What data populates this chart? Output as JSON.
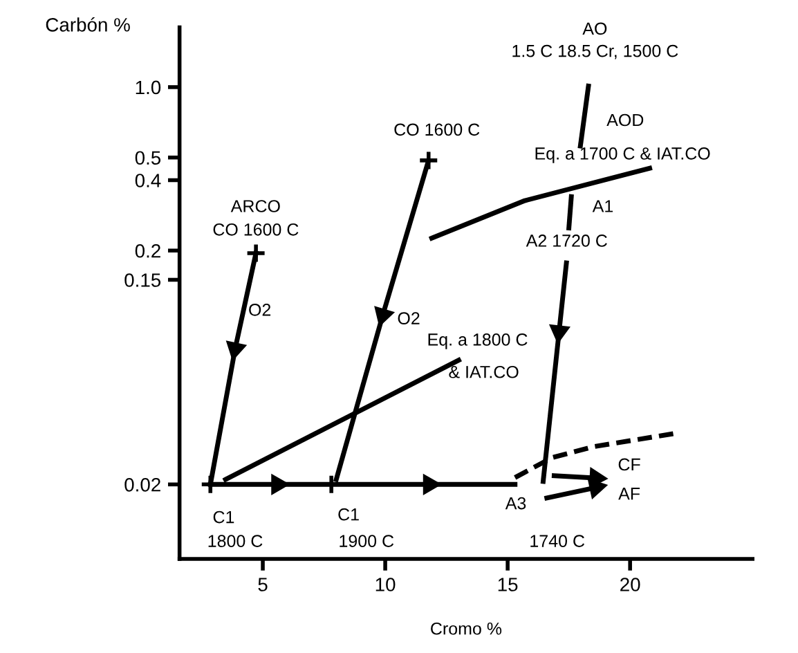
{
  "chart_data": {
    "type": "line",
    "xlabel": "Cromo %",
    "ylabel": "Carbón %",
    "log": "y",
    "grid": false,
    "xlim": [
      1.6,
      25
    ],
    "ylim": [
      0.0096,
      1.8
    ],
    "xticks": [
      5,
      10,
      15,
      20
    ],
    "yticks": [
      {
        "value": 1,
        "label": "1.0"
      },
      0.5,
      0.4,
      0.2,
      0.15,
      0.02
    ],
    "series": [
      {
        "color": "#000000",
        "marker": "triangle",
        "x": [
          4.72,
          3.87
        ],
        "values": [
          0.195,
          0.076
        ]
      },
      {
        "color": "#000000",
        "marker": "none",
        "x": [
          3.87,
          2.86
        ],
        "values": [
          0.076,
          0.02
        ]
      },
      {
        "color": "#000000",
        "marker": "triangle",
        "x": [
          11.77,
          9.9
        ],
        "values": [
          0.486,
          0.106
        ]
      },
      {
        "color": "#000000",
        "marker": "none",
        "x": [
          9.9,
          8.0
        ],
        "values": [
          0.106,
          0.021
        ]
      },
      {
        "color": "#000000",
        "marker": "none",
        "x": [
          3.48,
          13.0
        ],
        "values": [
          0.021,
          0.068
        ]
      },
      {
        "color": "#000000",
        "marker": "none",
        "x": [
          11.9,
          15.7,
          20.8
        ],
        "values": [
          0.226,
          0.327,
          0.45
        ]
      },
      {
        "color": "#000000",
        "marker": "none",
        "x": [
          18.3,
          17.97
        ],
        "values": [
          1.01,
          0.56
        ]
      },
      {
        "color": "#000000",
        "marker": "none",
        "x": [
          17.6,
          17.5
        ],
        "values": [
          0.34,
          0.25
        ]
      },
      {
        "color": "#000000",
        "marker": "triangle",
        "x": [
          17.4,
          17.1
        ],
        "values": [
          0.177,
          0.09
        ]
      },
      {
        "color": "#000000",
        "marker": "none",
        "x": [
          17.1,
          16.45
        ],
        "values": [
          0.09,
          0.0206
        ]
      },
      {
        "color": "#000000",
        "marker": "triangle",
        "x": [
          2.86,
          5.6
        ],
        "values": [
          0.02,
          0.02
        ]
      },
      {
        "color": "#000000",
        "marker": "triangle",
        "x": [
          5.6,
          11.8
        ],
        "values": [
          0.02,
          0.02
        ]
      },
      {
        "color": "#000000",
        "marker": "none",
        "x": [
          11.8,
          15.3
        ],
        "values": [
          0.02,
          0.02
        ]
      },
      {
        "color": "#000000",
        "marker": "none",
        "line_style": "dashed",
        "x": [
          15.3,
          16.8,
          18.5,
          21.8
        ],
        "values": [
          0.0214,
          0.026,
          0.029,
          0.033
        ]
      },
      {
        "color": "#000000",
        "marker": "triangle",
        "x": [
          16.9,
          18.6
        ],
        "values": [
          0.0218,
          0.0213
        ]
      },
      {
        "color": "#000000",
        "marker": "triangle",
        "x": [
          16.6,
          18.6
        ],
        "values": [
          0.0175,
          0.0194
        ]
      },
      {
        "type": "scatter",
        "color": "#000000",
        "marker": "cross",
        "x": [
          4.72,
          11.77,
          2.86,
          7.8
        ],
        "values": [
          0.195,
          0.486,
          0.02,
          0.02
        ]
      }
    ],
    "annotations": [
      "AO",
      "1.5 C 18.5 Cr, 1500 C",
      "AOD",
      "Eq. a 1700 C & IAT.CO",
      "A1",
      "A2 1720 C",
      "CO 1600 C",
      "ARCO",
      "CO 1600 C",
      "O2",
      "O2",
      "Eq. a 1800 C",
      "& IAT.CO",
      "C1",
      "1800 C",
      "C1",
      "1900 C",
      "A3",
      "1740 C",
      "CF",
      "AF"
    ]
  }
}
